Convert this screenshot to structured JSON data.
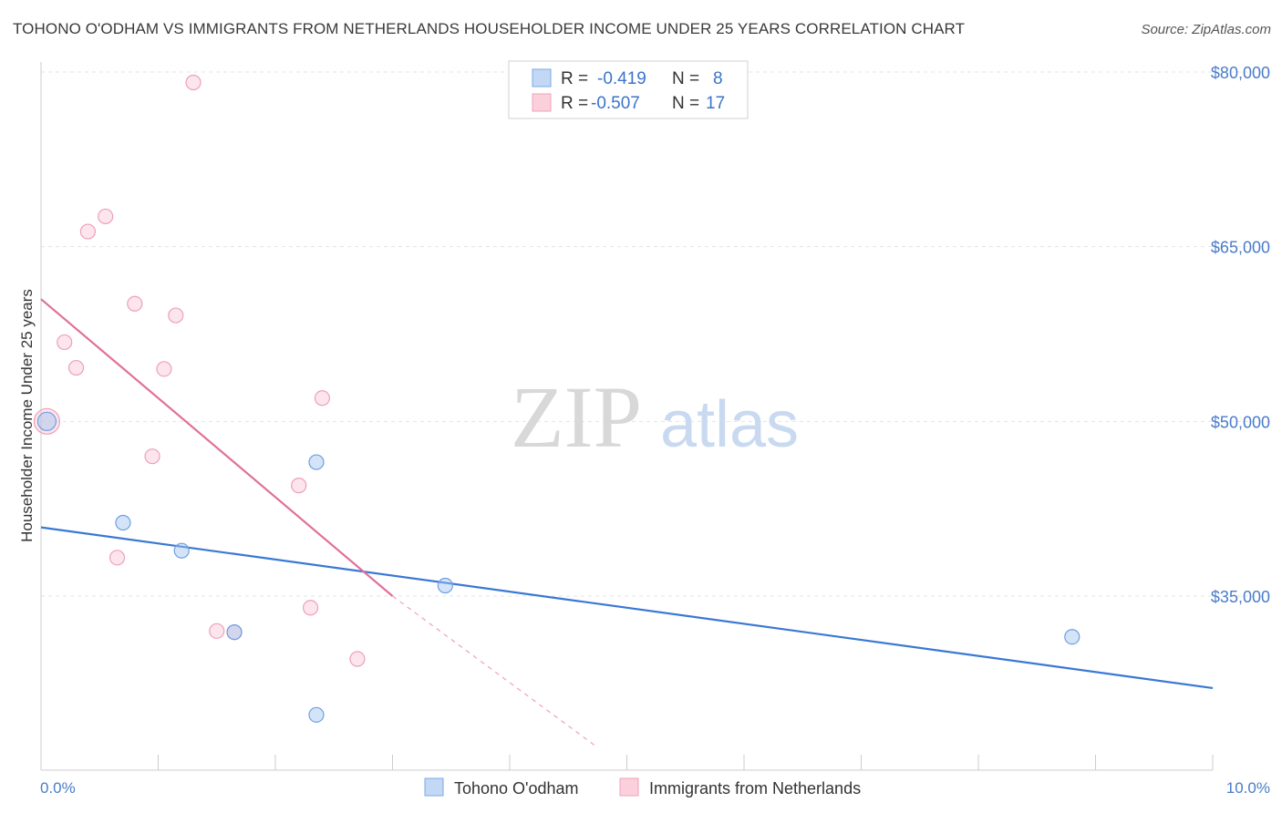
{
  "title": "TOHONO O'ODHAM VS IMMIGRANTS FROM NETHERLANDS HOUSEHOLDER INCOME UNDER 25 YEARS CORRELATION CHART",
  "source": "Source: ZipAtlas.com",
  "watermark": {
    "zip": "ZIP",
    "atlas": "atlas"
  },
  "legend": {
    "r_label": "R =",
    "n_label": "N =",
    "rows": [
      {
        "r": "-0.419",
        "n": "8"
      },
      {
        "r": "-0.507",
        "n": "17"
      }
    ]
  },
  "chart_data": {
    "type": "scatter",
    "title": "TOHONO O'ODHAM VS IMMIGRANTS FROM NETHERLANDS HOUSEHOLDER INCOME UNDER 25 YEARS CORRELATION CHART",
    "xlabel": "",
    "ylabel": "Householder Income Under 25 years",
    "xlim": [
      0,
      10
    ],
    "ylim": [
      22000,
      82000
    ],
    "x_tick_labels": [
      "0.0%",
      "10.0%"
    ],
    "y_ticks": [
      35000,
      50000,
      65000,
      80000
    ],
    "y_tick_labels": [
      "$35,000",
      "$50,000",
      "$65,000",
      "$80,000"
    ],
    "grid": true,
    "legend_position": "top-center",
    "series": [
      {
        "name": "Tohono O'odham",
        "color": "#7aaae6",
        "points": [
          [
            0.05,
            50000
          ],
          [
            0.7,
            41300
          ],
          [
            1.2,
            38900
          ],
          [
            1.65,
            31900
          ],
          [
            2.35,
            46500
          ],
          [
            2.35,
            24800
          ],
          [
            3.45,
            35900
          ],
          [
            8.8,
            31500
          ]
        ],
        "trend": {
          "x": [
            0,
            10
          ],
          "y": [
            40900,
            27100
          ]
        }
      },
      {
        "name": "Immigrants from Netherlands",
        "color": "#f0a0b8",
        "points": [
          [
            0.05,
            50000
          ],
          [
            0.2,
            56800
          ],
          [
            0.3,
            54600
          ],
          [
            0.4,
            66300
          ],
          [
            0.55,
            67600
          ],
          [
            0.65,
            38300
          ],
          [
            0.8,
            60100
          ],
          [
            0.95,
            47000
          ],
          [
            1.05,
            54500
          ],
          [
            1.15,
            59100
          ],
          [
            1.3,
            79100
          ],
          [
            1.5,
            32000
          ],
          [
            1.65,
            31900
          ],
          [
            2.2,
            44500
          ],
          [
            2.3,
            34000
          ],
          [
            2.4,
            52000
          ],
          [
            2.7,
            29600
          ]
        ],
        "trend": {
          "x": [
            0,
            3.0
          ],
          "y": [
            60500,
            35000
          ]
        },
        "trend_extension": {
          "x": [
            3.0,
            4.75
          ],
          "y": [
            35000,
            22000
          ]
        }
      }
    ]
  },
  "bottom_legend": [
    "Tohono O'odham",
    "Immigrants from Netherlands"
  ]
}
